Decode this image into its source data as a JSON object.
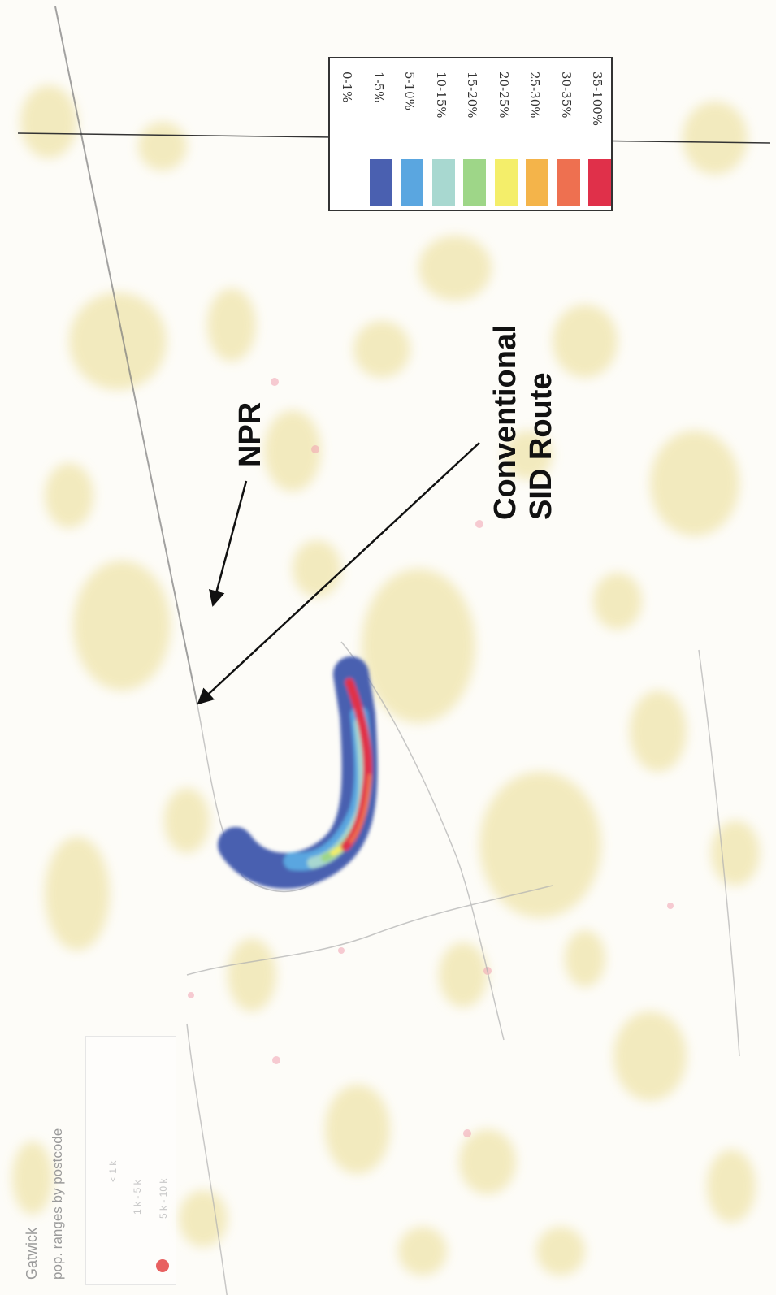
{
  "map": {
    "title": "Gatwick",
    "subtitle": "pop. ranges by postcode",
    "panel_values": [
      "< 1 k",
      "1 k - 5 k",
      "5 k - 10 k"
    ]
  },
  "annotations": {
    "npr_label": "NPR",
    "sid_label_line1": "Conventional",
    "sid_label_line2": "SID Route"
  },
  "legend": {
    "items": [
      {
        "label": "0-1%",
        "color": "#ffffff"
      },
      {
        "label": "1-5%",
        "color": "#4a60b0"
      },
      {
        "label": "5-10%",
        "color": "#5aa6e0"
      },
      {
        "label": "10-15%",
        "color": "#a8d8d0"
      },
      {
        "label": "15-20%",
        "color": "#9ed688"
      },
      {
        "label": "20-25%",
        "color": "#f4ee6a"
      },
      {
        "label": "25-30%",
        "color": "#f4b44a"
      },
      {
        "label": "30-35%",
        "color": "#ee7050"
      },
      {
        "label": "35-100%",
        "color": "#e0304a"
      }
    ]
  },
  "colors": {
    "urban_fill": "#f1e7b4",
    "arrow": "#111111",
    "track_line": "#8a8a8a",
    "key_dot": "#e86060"
  }
}
